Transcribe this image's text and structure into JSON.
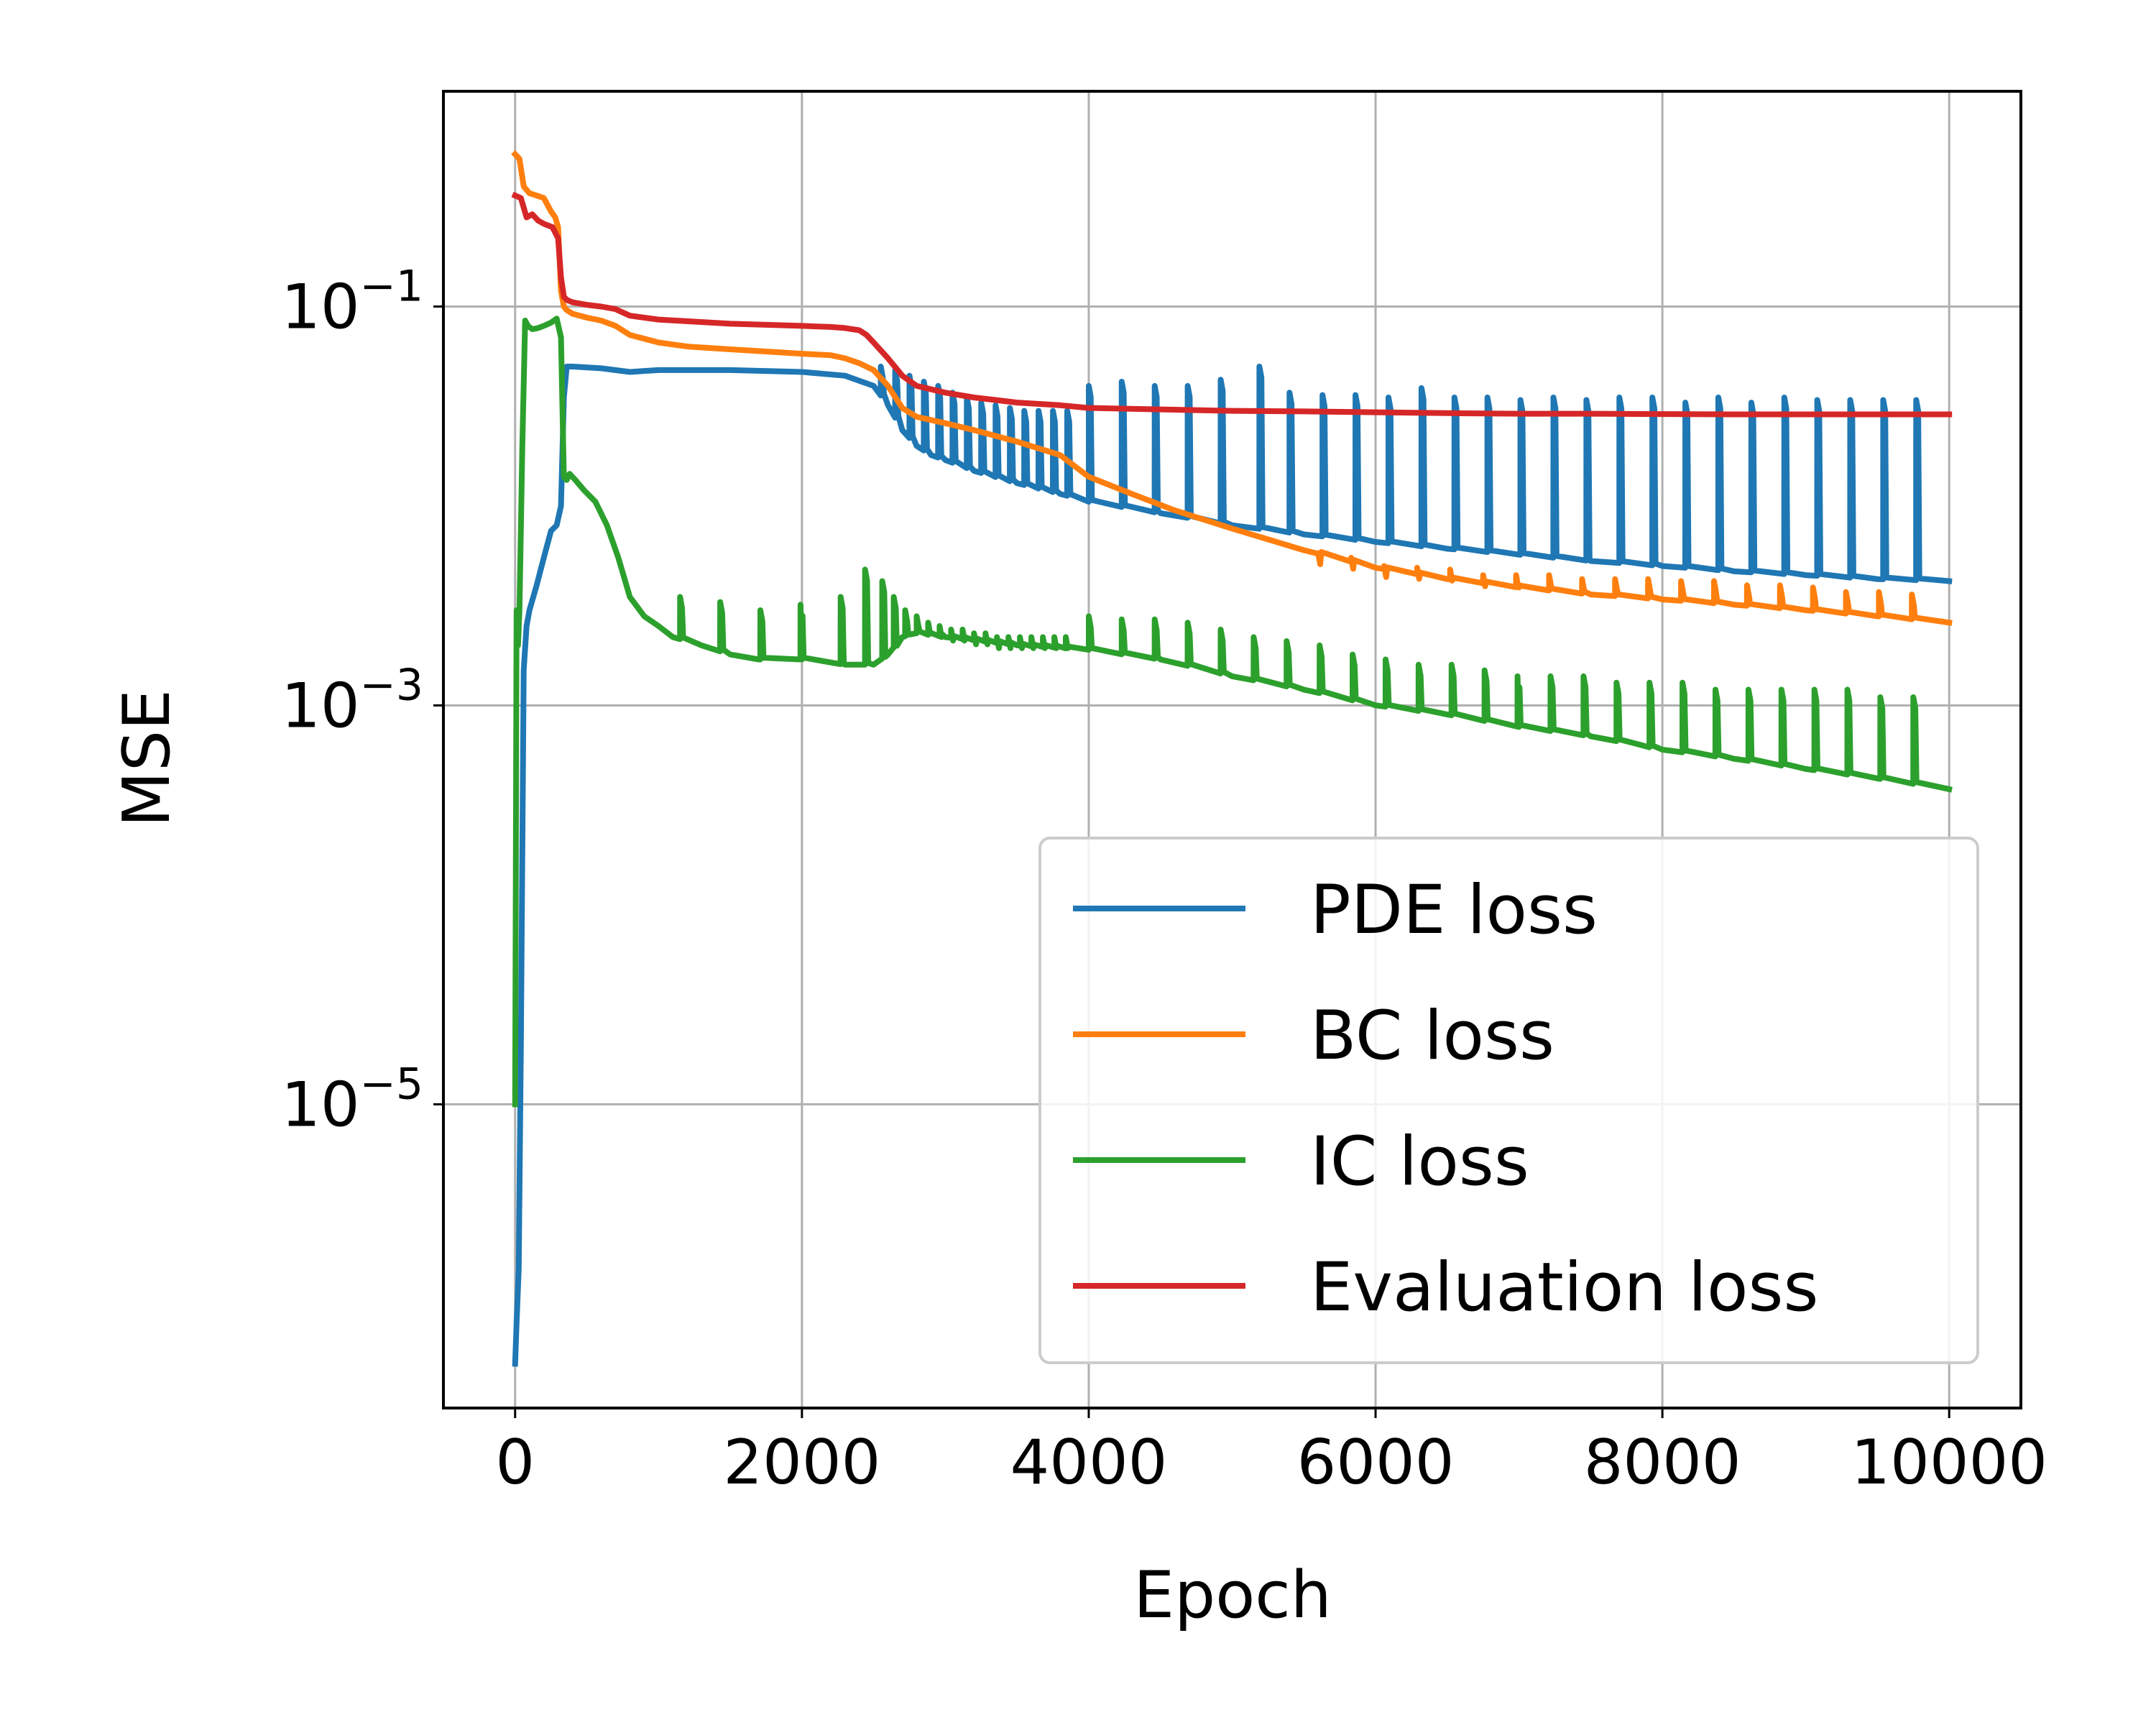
{
  "chart_data": {
    "type": "line",
    "title": "",
    "xlabel": "Epoch",
    "ylabel": "MSE",
    "xlim": [
      -500,
      10500
    ],
    "ylim": [
      3e-07,
      1.2
    ],
    "yscale": "log",
    "grid": true,
    "legend_position": "bottom-right",
    "x_ticks": [
      {
        "value": 0,
        "label": "0"
      },
      {
        "value": 2000,
        "label": "2000"
      },
      {
        "value": 4000,
        "label": "4000"
      },
      {
        "value": 6000,
        "label": "6000"
      },
      {
        "value": 8000,
        "label": "8000"
      },
      {
        "value": 10000,
        "label": "10000"
      }
    ],
    "y_ticks": [
      {
        "value": 0.1,
        "base": "10",
        "exponent": "−1"
      },
      {
        "value": 0.001,
        "base": "10",
        "exponent": "−3"
      },
      {
        "value": 1e-05,
        "base": "10",
        "exponent": "−5"
      }
    ],
    "series": [
      {
        "name": "PDE loss",
        "color": "#1f77b4",
        "x": [
          0,
          10,
          25,
          40,
          60,
          80,
          100,
          150,
          200,
          250,
          290,
          320,
          340,
          360,
          400,
          600,
          800,
          1000,
          1500,
          2000,
          2300,
          2500,
          2600,
          2700,
          2800,
          2900,
          3000,
          3200,
          3500,
          3800,
          4000,
          4500,
          5000,
          5500,
          6000,
          6500,
          7000,
          7500,
          8000,
          8500,
          9000,
          9500,
          10000
        ],
        "values": [
          5e-07,
          8e-07,
          1.5e-06,
          2e-05,
          0.0015,
          0.0025,
          0.003,
          0.004,
          0.0055,
          0.0075,
          0.008,
          0.01,
          0.035,
          0.05,
          0.05,
          0.049,
          0.047,
          0.048,
          0.048,
          0.047,
          0.045,
          0.04,
          0.032,
          0.024,
          0.02,
          0.018,
          0.017,
          0.015,
          0.013,
          0.0115,
          0.0105,
          0.0092,
          0.008,
          0.0072,
          0.0066,
          0.0061,
          0.0057,
          0.0053,
          0.005,
          0.0047,
          0.0045,
          0.0043,
          0.0042
        ],
        "spikes": {
          "x": [
            2550,
            2650,
            2750,
            2850,
            2950,
            3050,
            3150,
            3250,
            3350,
            3450,
            3550,
            3650,
            3750,
            3850,
            4000,
            4230,
            4460,
            4690,
            4920,
            5190,
            5400,
            5630,
            5860,
            6090,
            6320,
            6550,
            6780,
            7010,
            7240,
            7470,
            7700,
            7930,
            8160,
            8390,
            8620,
            8850,
            9080,
            9310,
            9540,
            9770
          ],
          "peak": [
            0.05,
            0.048,
            0.045,
            0.042,
            0.04,
            0.037,
            0.035,
            0.033,
            0.032,
            0.031,
            0.03,
            0.03,
            0.03,
            0.03,
            0.04,
            0.042,
            0.04,
            0.04,
            0.043,
            0.05,
            0.037,
            0.036,
            0.036,
            0.035,
            0.039,
            0.035,
            0.035,
            0.034,
            0.035,
            0.034,
            0.035,
            0.035,
            0.033,
            0.035,
            0.033,
            0.035,
            0.034,
            0.034,
            0.034,
            0.034
          ]
        }
      },
      {
        "name": "BC loss",
        "color": "#ff7f0e",
        "x": [
          0,
          30,
          60,
          100,
          150,
          200,
          250,
          280,
          300,
          320,
          340,
          360,
          400,
          500,
          600,
          700,
          800,
          1000,
          1200,
          1500,
          2000,
          2200,
          2300,
          2400,
          2500,
          2600,
          2700,
          2800,
          3000,
          3200,
          3500,
          3800,
          4000,
          4300,
          4600,
          5000,
          5500,
          6000,
          6500,
          7000,
          7500,
          8000,
          8500,
          9000,
          9500,
          10000
        ],
        "values": [
          0.58,
          0.55,
          0.4,
          0.37,
          0.36,
          0.35,
          0.3,
          0.28,
          0.25,
          0.12,
          0.1,
          0.096,
          0.092,
          0.088,
          0.085,
          0.08,
          0.072,
          0.066,
          0.063,
          0.061,
          0.058,
          0.057,
          0.055,
          0.052,
          0.048,
          0.04,
          0.031,
          0.028,
          0.026,
          0.024,
          0.021,
          0.018,
          0.014,
          0.0115,
          0.0095,
          0.0077,
          0.006,
          0.0049,
          0.0043,
          0.0039,
          0.0036,
          0.0034,
          0.0032,
          0.003,
          0.0028,
          0.0026
        ],
        "spikes": {
          "x": [
            5600,
            5830,
            6060,
            6290,
            6520,
            6750,
            6980,
            7210,
            7440,
            7670,
            7900,
            8130,
            8360,
            8590,
            8820,
            9050,
            9280,
            9510,
            9740
          ],
          "peak": [
            0.0058,
            0.0055,
            0.005,
            0.0049,
            0.0048,
            0.0045,
            0.0045,
            0.0045,
            0.0043,
            0.0043,
            0.0043,
            0.0042,
            0.0042,
            0.004,
            0.004,
            0.0039,
            0.0037,
            0.0037,
            0.0036
          ]
        }
      },
      {
        "name": "IC loss",
        "color": "#2ca02c",
        "x": [
          0,
          10,
          20,
          30,
          50,
          70,
          90,
          120,
          160,
          200,
          250,
          290,
          320,
          340,
          360,
          380,
          420,
          480,
          560,
          640,
          720,
          800,
          900,
          1000,
          1100,
          1300,
          1500,
          1700,
          2000,
          2300,
          2500,
          2600,
          2700,
          2800,
          3000,
          3500,
          4000,
          4500,
          5000,
          5500,
          6000,
          6500,
          7000,
          7500,
          8000,
          8500,
          9000,
          9500,
          10000
        ],
        "values": [
          1e-05,
          0.003,
          0.002,
          0.003,
          0.02,
          0.085,
          0.08,
          0.077,
          0.078,
          0.08,
          0.083,
          0.087,
          0.07,
          0.014,
          0.0135,
          0.0145,
          0.0135,
          0.012,
          0.0105,
          0.008,
          0.0055,
          0.0035,
          0.0028,
          0.0025,
          0.0022,
          0.002,
          0.0018,
          0.0017,
          0.0017,
          0.0016,
          0.0016,
          0.0018,
          0.0022,
          0.0023,
          0.0022,
          0.002,
          0.0019,
          0.0017,
          0.0014,
          0.0012,
          0.001,
          0.0009,
          0.00078,
          0.0007,
          0.0006,
          0.00054,
          0.00048,
          0.00043,
          0.00038
        ],
        "spikes": {
          "x": [
            1150,
            1430,
            1710,
            1990,
            2270,
            2440,
            2560,
            2640,
            2720,
            2800,
            2880,
            2960,
            3040,
            3120,
            3200,
            3280,
            3360,
            3440,
            3520,
            3600,
            3680,
            3760,
            3840,
            4000,
            4230,
            4460,
            4690,
            4920,
            5150,
            5380,
            5610,
            5840,
            6070,
            6300,
            6530,
            6760,
            6990,
            7220,
            7450,
            7680,
            7910,
            8140,
            8370,
            8600,
            8830,
            9060,
            9290,
            9520,
            9750
          ],
          "peak": [
            0.0035,
            0.0033,
            0.003,
            0.0032,
            0.0035,
            0.0048,
            0.0042,
            0.0035,
            0.003,
            0.0028,
            0.0026,
            0.0025,
            0.0024,
            0.0024,
            0.0023,
            0.0023,
            0.0022,
            0.0022,
            0.0022,
            0.0022,
            0.0022,
            0.0022,
            0.0022,
            0.0028,
            0.0027,
            0.0027,
            0.0026,
            0.0024,
            0.0022,
            0.0021,
            0.002,
            0.0018,
            0.0017,
            0.0016,
            0.0016,
            0.0015,
            0.0014,
            0.0014,
            0.0014,
            0.0013,
            0.0013,
            0.0013,
            0.0012,
            0.0012,
            0.0012,
            0.0012,
            0.0012,
            0.0011,
            0.0011
          ]
        }
      },
      {
        "name": "Evaluation loss",
        "color": "#d62728",
        "x": [
          0,
          40,
          80,
          120,
          160,
          200,
          260,
          300,
          320,
          340,
          360,
          400,
          500,
          600,
          700,
          800,
          1000,
          1500,
          2000,
          2200,
          2300,
          2400,
          2450,
          2500,
          2600,
          2700,
          2800,
          3000,
          3200,
          3500,
          3800,
          4000,
          4500,
          5000,
          5500,
          6000,
          6500,
          7000,
          7500,
          8000,
          8500,
          9000,
          9500,
          10000
        ],
        "values": [
          0.36,
          0.35,
          0.28,
          0.29,
          0.27,
          0.26,
          0.25,
          0.22,
          0.14,
          0.112,
          0.108,
          0.105,
          0.102,
          0.1,
          0.097,
          0.09,
          0.086,
          0.082,
          0.08,
          0.079,
          0.078,
          0.076,
          0.072,
          0.066,
          0.055,
          0.045,
          0.04,
          0.037,
          0.035,
          0.033,
          0.032,
          0.031,
          0.0305,
          0.03,
          0.0298,
          0.0295,
          0.0292,
          0.029,
          0.029,
          0.0289,
          0.0288,
          0.0288,
          0.0288,
          0.0288
        ],
        "spikes": {
          "x": [],
          "peak": []
        }
      }
    ]
  }
}
